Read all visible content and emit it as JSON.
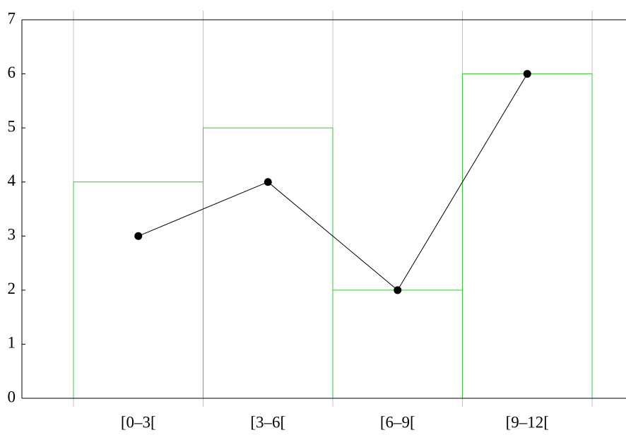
{
  "chart_data": {
    "type": "bar",
    "categories": [
      "[0–3[",
      "[3–6[",
      "[6–9[",
      "[9–12["
    ],
    "series": [
      {
        "type": "bar",
        "color": "#33cc33",
        "values": [
          4,
          5,
          2,
          6
        ]
      },
      {
        "type": "line",
        "color": "#000000",
        "values": [
          3,
          4,
          2,
          6
        ]
      }
    ],
    "ylim": [
      0,
      7
    ],
    "yticks": [
      0,
      1,
      2,
      3,
      4,
      5,
      6,
      7
    ],
    "grid": true
  }
}
